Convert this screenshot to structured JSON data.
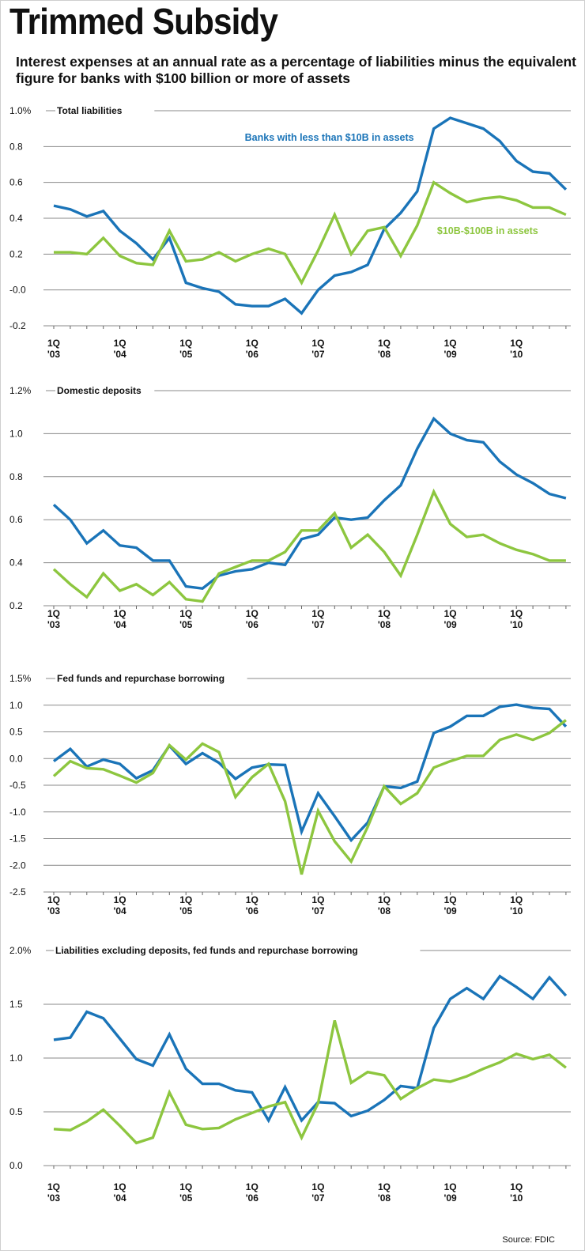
{
  "header": {
    "title": "Trimmed Subsidy",
    "subtitle": "Interest expenses at an annual rate as a percentage of liabilities minus the equivalent figure for banks with $100 billion or more of assets"
  },
  "footer": {
    "source": "Source: FDIC"
  },
  "colors": {
    "small_banks": "#1a74b8",
    "mid_banks": "#8dc63f",
    "grid": "#8a8a8a"
  },
  "chart_data": [
    {
      "type": "line",
      "title": "Total liabilities",
      "ylim": [
        -0.2,
        1.0
      ],
      "yticks": [
        1.0,
        0.8,
        0.6,
        0.4,
        0.2,
        0.0,
        -0.2
      ],
      "ytick_labels": [
        "1.0%",
        "0.8",
        "0.6",
        "0.4",
        "0.2",
        "-0.0",
        "-0.2"
      ],
      "x_labels": [
        "1Q\n'03",
        "1Q\n'04",
        "1Q\n'05",
        "1Q\n'06",
        "1Q\n'07",
        "1Q\n'08",
        "1Q\n'09",
        "1Q\n'10"
      ],
      "annotations": [
        {
          "text": "Banks with less than $10B in assets",
          "series": 0,
          "quarter": 21.8,
          "value": 0.85,
          "anchor": "end"
        },
        {
          "text": "$10B-$100B in assets",
          "series": 1,
          "quarter": 23.2,
          "value": 0.33,
          "anchor": "start"
        }
      ],
      "series": [
        {
          "name": "Banks with less than $10B in assets",
          "values": [
            0.47,
            0.45,
            0.41,
            0.44,
            0.33,
            0.26,
            0.17,
            0.29,
            0.04,
            0.01,
            -0.01,
            -0.08,
            -0.09,
            -0.09,
            -0.05,
            -0.13,
            0.0,
            0.08,
            0.1,
            0.14,
            0.34,
            0.43,
            0.55,
            0.9,
            0.96,
            0.93,
            0.9,
            0.83,
            0.72,
            0.66,
            0.65,
            0.56
          ]
        },
        {
          "name": "$10B-$100B in assets",
          "values": [
            0.21,
            0.21,
            0.2,
            0.29,
            0.19,
            0.15,
            0.14,
            0.33,
            0.16,
            0.17,
            0.21,
            0.16,
            0.2,
            0.23,
            0.2,
            0.04,
            0.22,
            0.42,
            0.2,
            0.33,
            0.35,
            0.19,
            0.36,
            0.6,
            0.54,
            0.49,
            0.51,
            0.52,
            0.5,
            0.46,
            0.46,
            0.42
          ]
        }
      ]
    },
    {
      "type": "line",
      "title": "Domestic deposits",
      "ylim": [
        0.2,
        1.2
      ],
      "yticks": [
        1.2,
        1.0,
        0.8,
        0.6,
        0.4,
        0.2
      ],
      "ytick_labels": [
        "1.2%",
        "1.0",
        "0.8",
        "0.6",
        "0.4",
        "0.2"
      ],
      "x_labels": [
        "1Q\n'03",
        "1Q\n'04",
        "1Q\n'05",
        "1Q\n'06",
        "1Q\n'07",
        "1Q\n'08",
        "1Q\n'09",
        "1Q\n'10"
      ],
      "series": [
        {
          "name": "Banks with less than $10B in assets",
          "values": [
            0.67,
            0.6,
            0.49,
            0.55,
            0.48,
            0.47,
            0.41,
            0.41,
            0.29,
            0.28,
            0.34,
            0.36,
            0.37,
            0.4,
            0.39,
            0.51,
            0.53,
            0.61,
            0.6,
            0.61,
            0.69,
            0.76,
            0.93,
            1.07,
            1.0,
            0.97,
            0.96,
            0.87,
            0.81,
            0.77,
            0.72,
            0.7
          ]
        },
        {
          "name": "$10B-$100B in assets",
          "values": [
            0.37,
            0.3,
            0.24,
            0.35,
            0.27,
            0.3,
            0.25,
            0.31,
            0.23,
            0.22,
            0.35,
            0.38,
            0.41,
            0.41,
            0.45,
            0.55,
            0.55,
            0.63,
            0.47,
            0.53,
            0.45,
            0.34,
            0.53,
            0.73,
            0.58,
            0.52,
            0.53,
            0.49,
            0.46,
            0.44,
            0.41,
            0.41
          ]
        }
      ]
    },
    {
      "type": "line",
      "title": "Fed funds and repurchase borrowing",
      "ylim": [
        -2.5,
        1.5
      ],
      "yticks": [
        1.5,
        1.0,
        0.5,
        0.0,
        -0.5,
        -1.0,
        -1.5,
        -2.0,
        -2.5
      ],
      "ytick_labels": [
        "1.5%",
        "1.0",
        "0.5",
        "0.0",
        "-0.5",
        "-1.0",
        "-1.5",
        "-2.0",
        "-2.5"
      ],
      "x_labels": [
        "1Q\n'03",
        "1Q\n'04",
        "1Q\n'05",
        "1Q\n'06",
        "1Q\n'07",
        "1Q\n'08",
        "1Q\n'09",
        "1Q\n'10"
      ],
      "series": [
        {
          "name": "Banks with less than $10B in assets",
          "values": [
            -0.05,
            0.18,
            -0.15,
            -0.02,
            -0.1,
            -0.37,
            -0.22,
            0.24,
            -0.1,
            0.1,
            -0.08,
            -0.38,
            -0.17,
            -0.11,
            -0.12,
            -1.37,
            -0.65,
            -1.08,
            -1.53,
            -1.2,
            -0.52,
            -0.55,
            -0.43,
            0.48,
            0.6,
            0.8,
            0.8,
            0.97,
            1.01,
            0.95,
            0.93,
            0.6
          ]
        },
        {
          "name": "$10B-$100B in assets",
          "values": [
            -0.33,
            -0.05,
            -0.18,
            -0.2,
            -0.32,
            -0.45,
            -0.27,
            0.25,
            -0.02,
            0.28,
            0.12,
            -0.72,
            -0.35,
            -0.1,
            -0.8,
            -2.17,
            -0.98,
            -1.55,
            -1.93,
            -1.28,
            -0.52,
            -0.85,
            -0.65,
            -0.17,
            -0.05,
            0.05,
            0.05,
            0.35,
            0.45,
            0.35,
            0.48,
            0.72
          ]
        }
      ]
    },
    {
      "type": "line",
      "title": "Liabilities excluding deposits, fed funds and repurchase borrowing",
      "ylim": [
        0.0,
        2.0
      ],
      "yticks": [
        2.0,
        1.5,
        1.0,
        0.5,
        0.0
      ],
      "ytick_labels": [
        "2.0%",
        "1.5",
        "1.0",
        "0.5",
        "0.0"
      ],
      "x_labels": [
        "1Q\n'03",
        "1Q\n'04",
        "1Q\n'05",
        "1Q\n'06",
        "1Q\n'07",
        "1Q\n'08",
        "1Q\n'09",
        "1Q\n'10"
      ],
      "series": [
        {
          "name": "Banks with less than $10B in assets",
          "values": [
            1.17,
            1.19,
            1.43,
            1.37,
            1.18,
            0.99,
            0.93,
            1.22,
            0.9,
            0.76,
            0.76,
            0.7,
            0.68,
            0.42,
            0.73,
            0.42,
            0.59,
            0.58,
            0.46,
            0.51,
            0.61,
            0.74,
            0.72,
            1.28,
            1.55,
            1.65,
            1.55,
            1.76,
            1.66,
            1.55,
            1.75,
            1.58
          ]
        },
        {
          "name": "$10B-$100B in assets",
          "values": [
            0.34,
            0.33,
            0.41,
            0.52,
            0.37,
            0.21,
            0.26,
            0.68,
            0.38,
            0.34,
            0.35,
            0.43,
            0.49,
            0.55,
            0.59,
            0.26,
            0.58,
            1.35,
            0.77,
            0.87,
            0.84,
            0.62,
            0.72,
            0.8,
            0.78,
            0.83,
            0.9,
            0.96,
            1.04,
            0.99,
            1.03,
            0.91
          ]
        }
      ]
    }
  ]
}
